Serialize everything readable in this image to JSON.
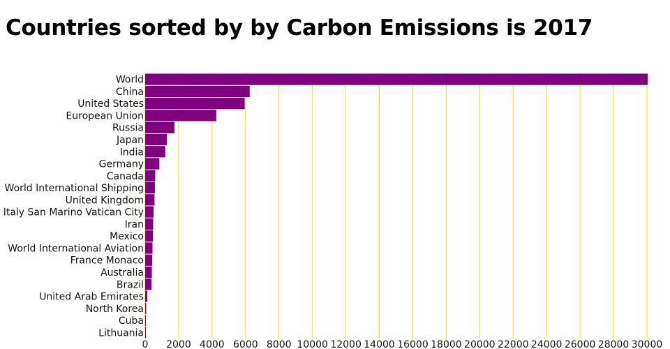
{
  "title": "Countries sorted by by Carbon Emissions is 2017",
  "colors": {
    "bar": "#800080",
    "grid": "#ffd700"
  },
  "chart_data": {
    "type": "bar",
    "orientation": "horizontal",
    "title": "Countries sorted by by Carbon Emissions is 2017",
    "xlabel": "",
    "ylabel": "",
    "xlim": [
      0,
      30000
    ],
    "xticks": [
      0,
      2000,
      4000,
      6000,
      8000,
      10000,
      12000,
      14000,
      16000,
      18000,
      20000,
      22000,
      24000,
      26000,
      28000,
      30000
    ],
    "grid": "vertical",
    "categories": [
      "World",
      "China",
      "United States",
      "European Union",
      "Russia",
      "Japan",
      "India",
      "Germany",
      "Canada",
      "World International Shipping",
      "United Kingdom",
      "Italy San Marino Vatican City",
      "Iran",
      "Mexico",
      "World International Aviation",
      "France Monaco",
      "Australia",
      "Brazil",
      "United Arab Emirates",
      "North Korea",
      "Cuba",
      "Lithuania"
    ],
    "values": [
      30050,
      6250,
      5950,
      4250,
      1750,
      1300,
      1200,
      850,
      600,
      580,
      560,
      500,
      480,
      460,
      440,
      420,
      400,
      380,
      120,
      60,
      30,
      10
    ]
  }
}
